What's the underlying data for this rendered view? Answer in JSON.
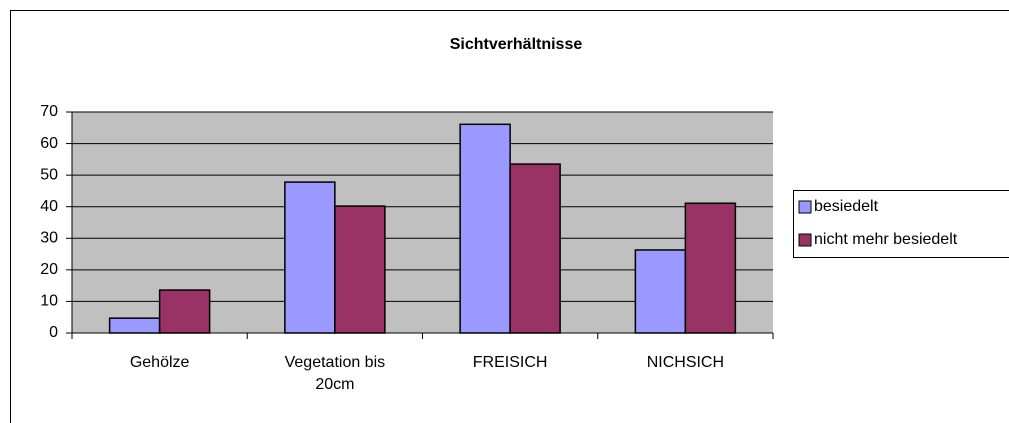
{
  "chart_data": {
    "type": "bar",
    "title": "Sichtverhältnisse",
    "categories": [
      "Gehölze",
      "Vegetation bis 20cm",
      "FREISICH",
      "NICHSICH"
    ],
    "series": [
      {
        "name": "besiedelt",
        "color": "#9999ff",
        "values": [
          4.7,
          47.8,
          66.1,
          26.3
        ]
      },
      {
        "name": "nicht mehr besiedelt",
        "color": "#993366",
        "values": [
          13.6,
          40.2,
          53.5,
          41.1
        ]
      }
    ],
    "ylim": [
      0,
      70
    ],
    "yticks": [
      0,
      10,
      20,
      30,
      40,
      50,
      60,
      70
    ],
    "grid": true,
    "legend": "right"
  }
}
